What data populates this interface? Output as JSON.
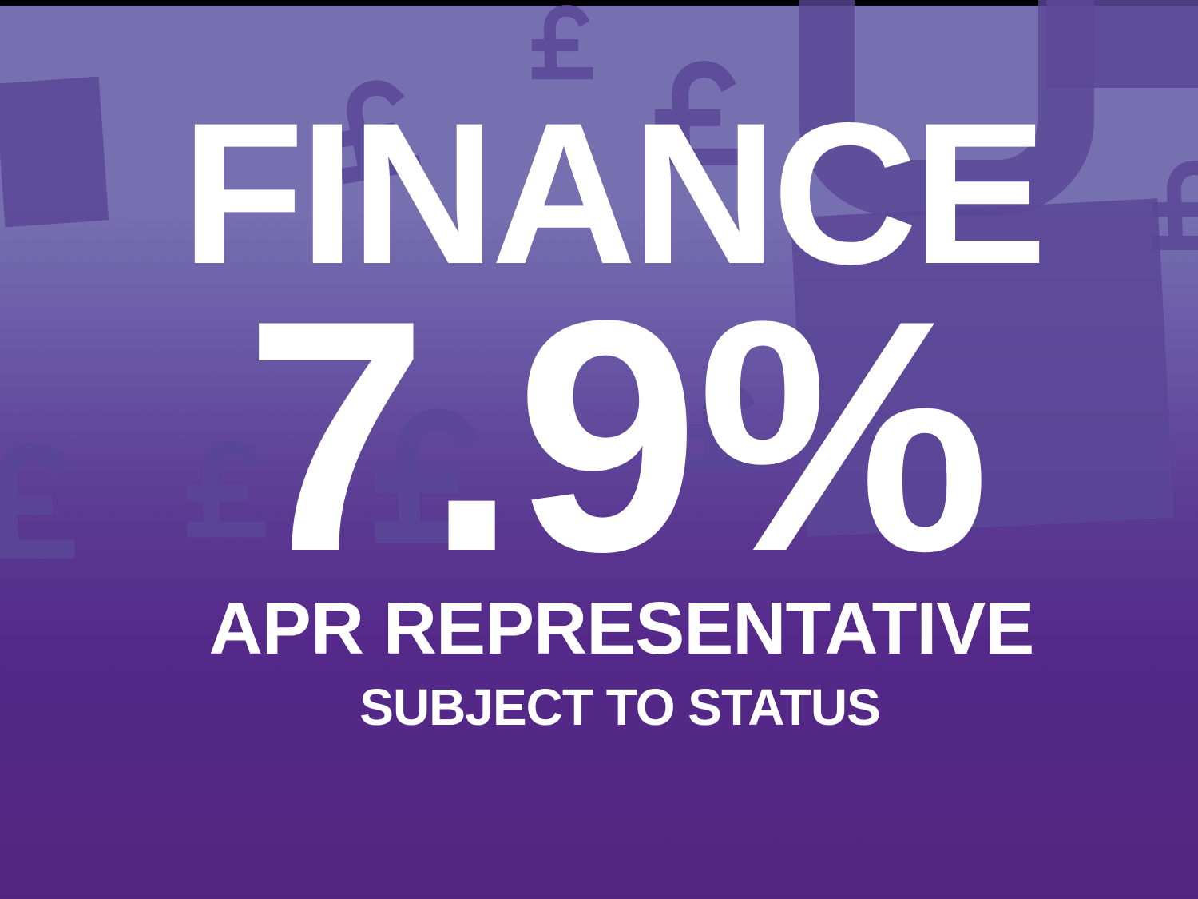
{
  "banner": {
    "headline": "FINANCE",
    "rate": "7.9%",
    "rate_label": "APR REPRESENTATIVE",
    "disclaimer": "SUBJECT TO STATUS"
  },
  "background": {
    "symbol": "£",
    "colors": {
      "top": "#7670b0",
      "bottom": "#52267f",
      "symbol": "#5a4797",
      "text": "#ffffff"
    }
  }
}
